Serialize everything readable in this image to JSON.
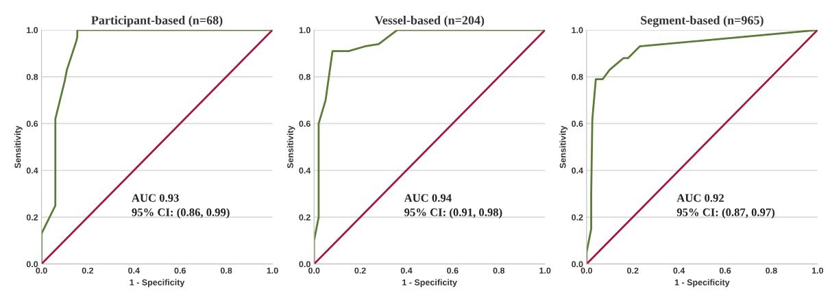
{
  "chart_data": [
    {
      "type": "line",
      "title": "Participant-based (n=68)",
      "xlabel": "1 - Specificity",
      "ylabel": "Sensitivity",
      "xlim": [
        0,
        1
      ],
      "ylim": [
        0,
        1
      ],
      "xticks": [
        {
          "value": 0,
          "label": "0.0"
        },
        {
          "value": 0.2,
          "label": "0.2"
        },
        {
          "value": 0.4,
          "label": "0.4"
        },
        {
          "value": 0.6,
          "label": "0.6"
        },
        {
          "value": 0.8,
          "label": "0.8"
        },
        {
          "value": 1,
          "label": "1.0"
        }
      ],
      "yticks": [
        {
          "value": 0,
          "label": "0.0"
        },
        {
          "value": 0.2,
          "label": "0.2"
        },
        {
          "value": 0.4,
          "label": "0.4"
        },
        {
          "value": 0.6,
          "label": "0.6"
        },
        {
          "value": 0.8,
          "label": "0.8"
        },
        {
          "value": 1,
          "label": "1.0"
        }
      ],
      "grid": "y",
      "marker": "none",
      "line_style": "solid",
      "series": [
        {
          "color": "#5b7b36",
          "x": [
            0,
            0,
            0.06,
            0.06,
            0.1,
            0.11,
            0.15,
            0.155,
            0.155,
            1
          ],
          "values": [
            0,
            0.13,
            0.25,
            0.62,
            0.78,
            0.83,
            0.95,
            0.97,
            1,
            1
          ]
        },
        {
          "color": "#a3173f",
          "x": [
            0,
            1
          ],
          "values": [
            0,
            1
          ]
        }
      ],
      "annotations": [
        "AUC 0.93\n95% CI: (0.86, 0.99)"
      ]
    },
    {
      "type": "line",
      "title": "Vessel-based (n=204)",
      "xlabel": "1 - Specificity",
      "ylabel": "Sensitivity",
      "xlim": [
        0,
        1
      ],
      "ylim": [
        0,
        1
      ],
      "xticks": [
        {
          "value": 0,
          "label": "0.0"
        },
        {
          "value": 0.2,
          "label": "0.2"
        },
        {
          "value": 0.4,
          "label": "0.4"
        },
        {
          "value": 0.6,
          "label": "0.6"
        },
        {
          "value": 0.8,
          "label": "0.8"
        },
        {
          "value": 1,
          "label": "1.0"
        }
      ],
      "yticks": [
        {
          "value": 0,
          "label": "0.0"
        },
        {
          "value": 0.2,
          "label": "0.2"
        },
        {
          "value": 0.4,
          "label": "0.4"
        },
        {
          "value": 0.6,
          "label": "0.6"
        },
        {
          "value": 0.8,
          "label": "0.8"
        },
        {
          "value": 1,
          "label": "1.0"
        }
      ],
      "grid": "y",
      "marker": "none",
      "line_style": "solid",
      "series": [
        {
          "color": "#5b7b36",
          "x": [
            0,
            0,
            0.02,
            0.02,
            0.05,
            0.08,
            0.15,
            0.22,
            0.28,
            0.36,
            1
          ],
          "values": [
            0,
            0.1,
            0.2,
            0.6,
            0.7,
            0.91,
            0.91,
            0.93,
            0.94,
            1,
            1
          ]
        },
        {
          "color": "#a3173f",
          "x": [
            0,
            1
          ],
          "values": [
            0,
            1
          ]
        }
      ],
      "annotations": [
        "AUC 0.94\n95% CI: (0.91, 0.98)"
      ]
    },
    {
      "type": "line",
      "title": "Segment-based (n=965)",
      "xlabel": "1 - Specificity",
      "ylabel": "Sensitivity",
      "xlim": [
        0,
        1
      ],
      "ylim": [
        0,
        1
      ],
      "xticks": [
        {
          "value": 0,
          "label": "0.0"
        },
        {
          "value": 0.2,
          "label": "0.2"
        },
        {
          "value": 0.4,
          "label": "0.4"
        },
        {
          "value": 0.6,
          "label": "0.6"
        },
        {
          "value": 0.8,
          "label": "0.8"
        },
        {
          "value": 1,
          "label": "1.0"
        }
      ],
      "yticks": [
        {
          "value": 0,
          "label": "0.0"
        },
        {
          "value": 0.2,
          "label": "0.2"
        },
        {
          "value": 0.4,
          "label": "0.4"
        },
        {
          "value": 0.6,
          "label": "0.6"
        },
        {
          "value": 0.8,
          "label": "0.8"
        },
        {
          "value": 1,
          "label": "1.0"
        }
      ],
      "grid": "y",
      "marker": "none",
      "line_style": "solid",
      "series": [
        {
          "color": "#5b7b36",
          "x": [
            0,
            0,
            0.02,
            0.02,
            0.025,
            0.04,
            0.07,
            0.1,
            0.16,
            0.18,
            0.23,
            1
          ],
          "values": [
            0,
            0.05,
            0.15,
            0.3,
            0.62,
            0.79,
            0.79,
            0.83,
            0.88,
            0.88,
            0.93,
            1
          ]
        },
        {
          "color": "#a3173f",
          "x": [
            0,
            1
          ],
          "values": [
            0,
            1
          ]
        }
      ],
      "annotations": [
        "AUC 0.92\n95% CI: (0.87, 0.97)"
      ]
    }
  ]
}
